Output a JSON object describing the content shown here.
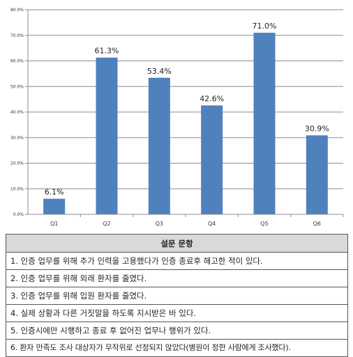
{
  "chart_data": {
    "type": "bar",
    "categories": [
      "Q1",
      "Q2",
      "Q3",
      "Q4",
      "Q5",
      "Q6"
    ],
    "values": [
      6.1,
      61.3,
      53.4,
      42.6,
      71.0,
      30.9
    ],
    "data_labels": [
      "6.1%",
      "61.3%",
      "53.4%",
      "42.6%",
      "71.0%",
      "30.9%"
    ],
    "yticks": [
      "0.0%",
      "10.0%",
      "20.0%",
      "30.0%",
      "40.0%",
      "50.0%",
      "60.0%",
      "70.0%",
      "80.0%"
    ],
    "ylim": [
      0,
      80
    ],
    "grid": true,
    "bar_color": "#4f81bd",
    "title": "",
    "xlabel": "",
    "ylabel": ""
  },
  "legend_table": {
    "header": "설문 문항",
    "rows": [
      "1. 인증 업무를 위해 추가 인력을 고용했다가 인증 종료후 해고한 적이 있다.",
      "2. 인증 업무를 위해 외래 환자를 줄였다.",
      "3. 인증 업무를 위해 입원 환자를 줄였다.",
      "4. 실제 상황과 다른 거짓말을 하도록 지시받은 바 있다.",
      "5. 인증시에만 시행하고 종료 후 없어진 업무나 행위가 있다.",
      "6. 환자 만족도 조사 대상자가 무작위로 선정되지 않았다(병원이 정한 사람에게 조사했다)."
    ]
  }
}
